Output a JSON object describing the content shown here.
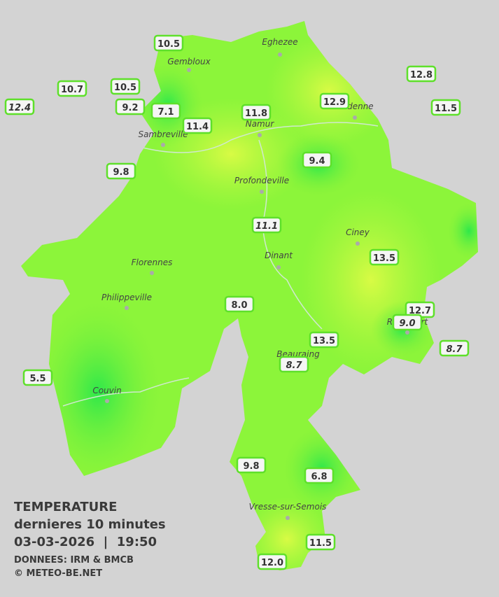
{
  "title": {
    "line1": "TEMPERATURE",
    "line2": "dernieres 10 minutes",
    "line3": "03-03-2026  |  19:50",
    "source": "DONNEES: IRM & BMCB",
    "copyright": "© METEO-BE.NET"
  },
  "cities": [
    "Eghezee",
    "Gembloux",
    "Andenne",
    "Namur",
    "Sambreville",
    "Profondeville",
    "Ciney",
    "Dinant",
    "Florennes",
    "Philippeville",
    "Rochefort",
    "Beauraing",
    "Couvin",
    "Vresse-sur-Semois"
  ],
  "stations": [
    "10.5",
    "10.7",
    "10.5",
    "12.4",
    "9.2",
    "7.1",
    "11.4",
    "11.8",
    "12.9",
    "12.8",
    "11.5",
    "9.8",
    "9.4",
    "11.1",
    "13.5",
    "8.0",
    "12.7",
    "9.0",
    "13.5",
    "8.7",
    "8.7",
    "5.5",
    "9.8",
    "6.8",
    "11.5",
    "12.0"
  ]
}
